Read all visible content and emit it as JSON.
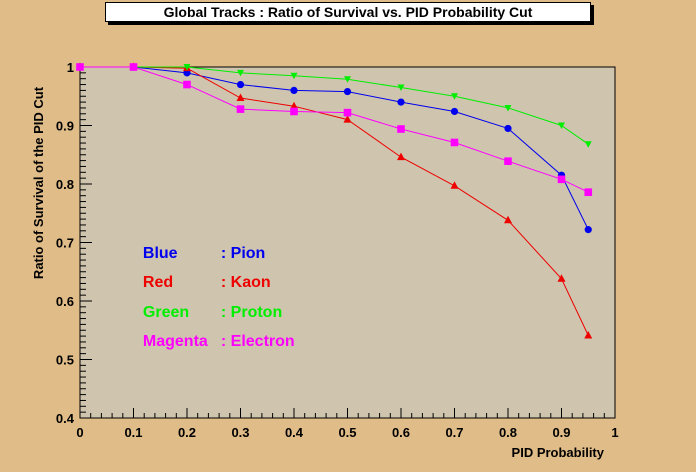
{
  "chart_data": {
    "type": "line",
    "title": "Global Tracks : Ratio of Survival vs. PID Probability Cut",
    "xlabel": "PID Probability",
    "ylabel": "Ratio of Survival of the PID Cut",
    "xlim": [
      0,
      1
    ],
    "ylim": [
      0.4,
      1
    ],
    "x_ticks": [
      "0",
      "0.1",
      "0.2",
      "0.3",
      "0.4",
      "0.5",
      "0.6",
      "0.7",
      "0.8",
      "0.9",
      "1"
    ],
    "y_ticks": [
      "0.4",
      "0.5",
      "0.6",
      "0.7",
      "0.8",
      "0.9",
      "1"
    ],
    "x": [
      0,
      0.1,
      0.2,
      0.3,
      0.4,
      0.5,
      0.6,
      0.7,
      0.8,
      0.9,
      0.95
    ],
    "series": [
      {
        "color": "#0000ee",
        "marker": "circle",
        "values": [
          1.0,
          1.0,
          0.99,
          0.97,
          0.96,
          0.958,
          0.94,
          0.924,
          0.895,
          0.815,
          0.722
        ]
      },
      {
        "color": "#ee0000",
        "marker": "triangle",
        "values": [
          1.0,
          1.0,
          0.998,
          0.947,
          0.933,
          0.91,
          0.846,
          0.797,
          0.738,
          0.638,
          0.541
        ]
      },
      {
        "color": "#00ee00",
        "marker": "star",
        "values": [
          1.0,
          1.0,
          1.0,
          0.99,
          0.985,
          0.979,
          0.965,
          0.95,
          0.93,
          0.9,
          0.868
        ]
      },
      {
        "color": "#ff00ff",
        "marker": "square",
        "values": [
          1.0,
          1.0,
          0.97,
          0.928,
          0.924,
          0.922,
          0.894,
          0.871,
          0.839,
          0.808,
          0.786
        ]
      }
    ],
    "annotations": [
      {
        "name": "Blue",
        "label": ": Pion",
        "color": "#0000ee"
      },
      {
        "name": "Red",
        "label": ": Kaon",
        "color": "#ee0000"
      },
      {
        "name": "Green",
        "label": ": Proton",
        "color": "#00ee00"
      },
      {
        "name": "Magenta",
        "label": ": Electron",
        "color": "#ff00ff"
      }
    ],
    "grid": false,
    "colors": {
      "frame_bg": "#cfc5ae",
      "page_bg": "#e0bc88"
    }
  }
}
